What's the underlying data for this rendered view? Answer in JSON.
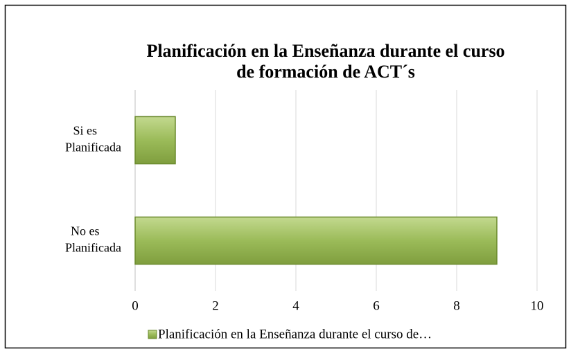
{
  "chart_data": {
    "type": "barh",
    "title": [
      "Planificación en la Enseñanza durante el curso",
      "de formación de ACT´s"
    ],
    "categories": [
      "Si es Planificada",
      "No es Planificada"
    ],
    "series": [
      {
        "name": "Planificación en la Enseñanza durante el curso de…",
        "color": "#9bbb59",
        "values": [
          1,
          9
        ]
      }
    ],
    "xlim": [
      0,
      10
    ],
    "xticks": [
      0,
      2,
      4,
      6,
      8,
      10
    ],
    "grid": true,
    "legend": "bottom"
  }
}
